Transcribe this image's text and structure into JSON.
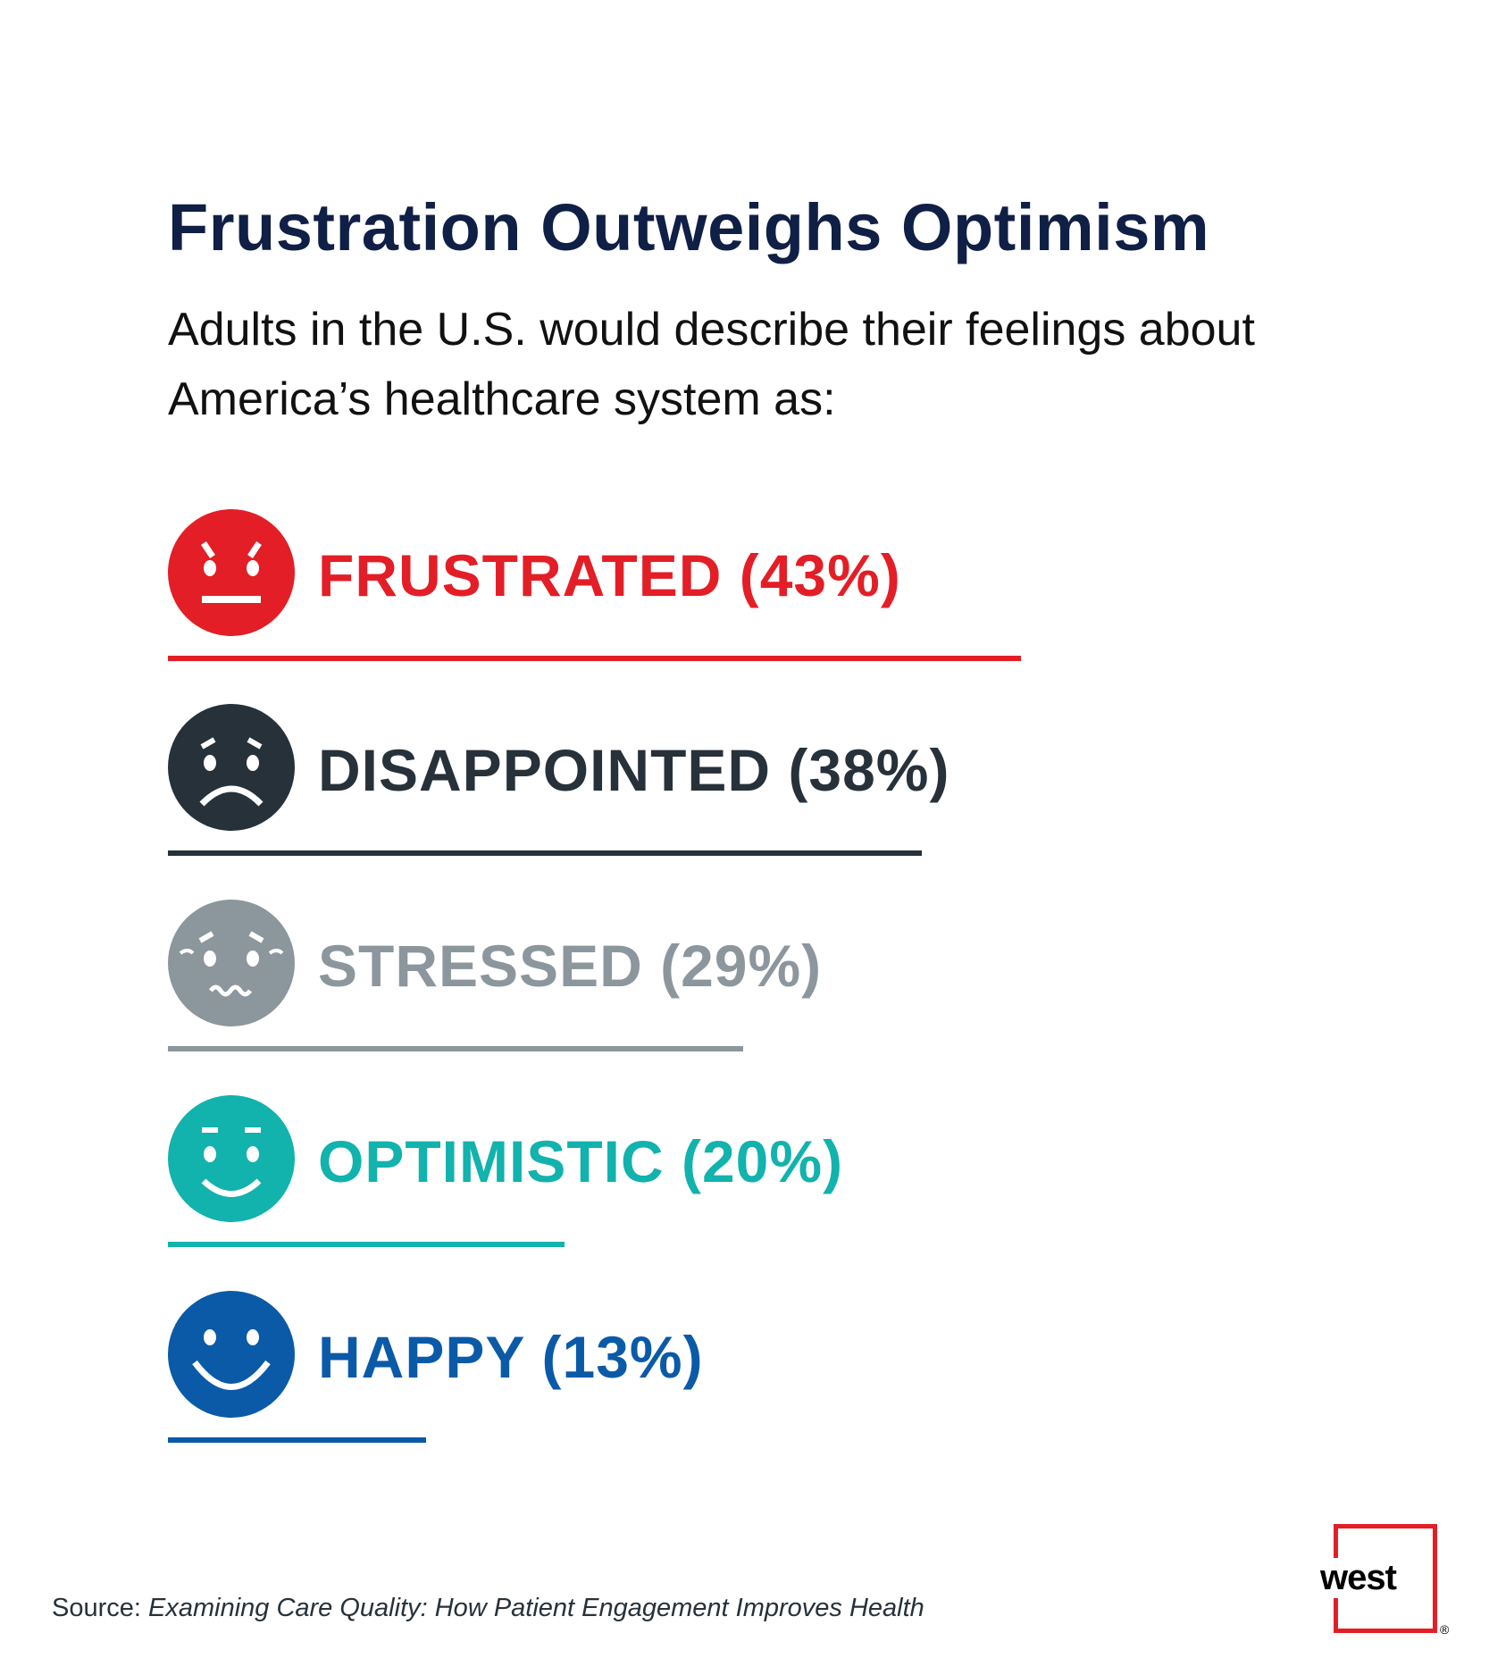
{
  "title": "Frustration Outweighs Optimism",
  "subtitle": "Adults in the U.S. would describe their feelings about America’s healthcare system as:",
  "source_prefix": "Source: ",
  "source_title": "Examining Care Quality: How Patient Engagement Improves Health",
  "logo": {
    "text": "west",
    "registered": "®"
  },
  "chart_data": {
    "type": "bar",
    "orientation": "horizontal",
    "title": "Frustration Outweighs Optimism",
    "categories": [
      "FRUSTRATED",
      "DISAPPOINTED",
      "STRESSED",
      "OPTIMISTIC",
      "HAPPY"
    ],
    "values": [
      43,
      38,
      29,
      20,
      13
    ],
    "unit": "%",
    "labels": [
      "FRUSTRATED (43%)",
      "DISAPPOINTED (38%)",
      "STRESSED (29%)",
      "OPTIMISTIC (20%)",
      "HAPPY (13%)"
    ],
    "faces": [
      "angry-face-icon",
      "sad-face-icon",
      "stressed-face-icon",
      "optimistic-face-icon",
      "happy-face-icon"
    ],
    "colors": [
      "#e31e26",
      "#27313a",
      "#8c969d",
      "#12b2ad",
      "#0a5aa8"
    ],
    "xlim": [
      0,
      100
    ],
    "grid": false
  }
}
